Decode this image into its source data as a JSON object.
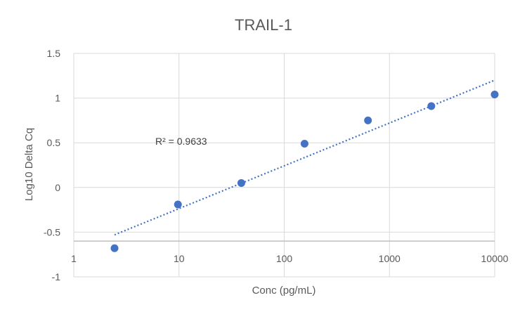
{
  "chart_data": {
    "type": "scatter",
    "title": "TRAIL-1",
    "xlabel": "Conc (pg/mL)",
    "ylabel": "Log10 Delta Cq",
    "x_scale": "log",
    "xlim": [
      1,
      10000
    ],
    "ylim": [
      -1,
      1.5
    ],
    "x_ticks": [
      1,
      10,
      100,
      1000,
      10000
    ],
    "x_tick_labels": [
      "1",
      "10",
      "100",
      "1000",
      "10000"
    ],
    "y_ticks": [
      -1,
      -0.5,
      0,
      0.5,
      1,
      1.5
    ],
    "y_tick_labels": [
      "-1",
      "-0.5",
      "0",
      "0.5",
      "1",
      "1.5"
    ],
    "x_axis_crosses_at": -0.6,
    "grid": true,
    "legend": "none",
    "marker_color": "#4472C4",
    "series": [
      {
        "x": [
          2.44,
          9.77,
          39.1,
          156,
          625,
          2500,
          10000
        ],
        "y": [
          -0.68,
          -0.19,
          0.05,
          0.49,
          0.75,
          0.91,
          1.04
        ]
      }
    ],
    "trendline": {
      "type": "logarithmic",
      "style": "dotted",
      "color": "#4472C4",
      "x_range": [
        2.44,
        10000
      ],
      "y_range": [
        -0.53,
        1.2
      ],
      "label": "R² = 0.9633"
    }
  }
}
